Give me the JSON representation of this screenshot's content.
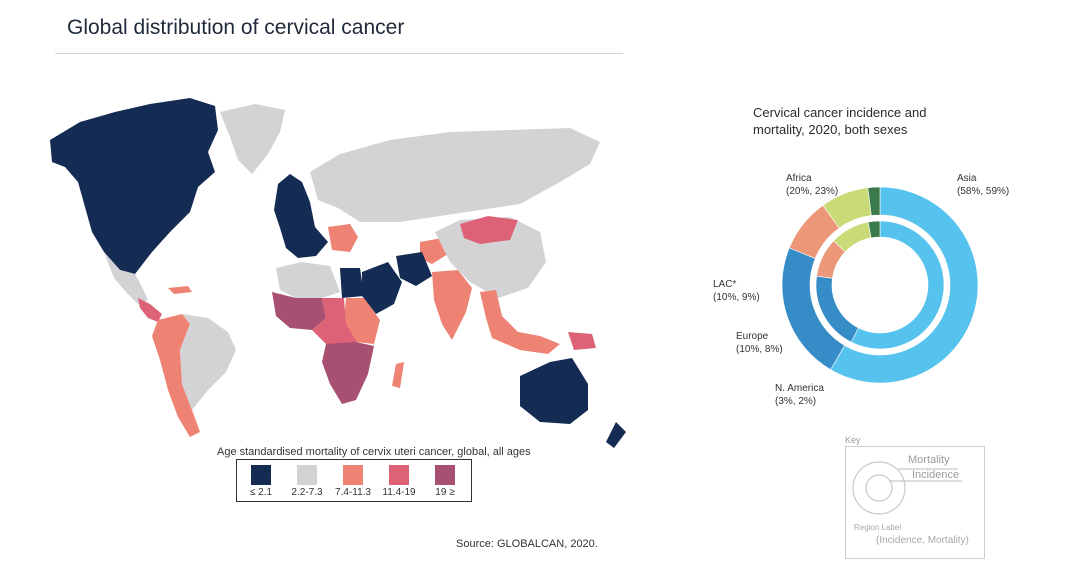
{
  "header": {
    "title": "Global distribution of cervical cancer"
  },
  "legend": {
    "title": "Age standardised mortality of cervix uteri cancer, global, all ages",
    "items": [
      {
        "label": "≤ 2.1",
        "color": "#142b53"
      },
      {
        "label": "2.2-7.3",
        "color": "#d3d3d5"
      },
      {
        "label": "7.4-11.3",
        "color": "#ee8273"
      },
      {
        "label": "11.4-19",
        "color": "#de6277"
      },
      {
        "label": "19 ≥",
        "color": "#a75072"
      }
    ]
  },
  "source": "Source: GLOBALCAN, 2020.",
  "chart_data": [
    {
      "type": "map",
      "title": "Global distribution of cervical cancer",
      "metric": "Age standardised mortality of cervix uteri cancer, global, all ages",
      "bins": [
        "≤ 2.1",
        "2.2-7.3",
        "7.4-11.3",
        "11.4-19",
        "19 ≥"
      ],
      "regions": [
        {
          "name": "North America",
          "bin": "≤ 2.1"
        },
        {
          "name": "Greenland",
          "bin": "2.2-7.3"
        },
        {
          "name": "Mexico",
          "bin": "2.2-7.3"
        },
        {
          "name": "Central America",
          "bin": "11.4-19"
        },
        {
          "name": "Caribbean",
          "bin": "7.4-11.3"
        },
        {
          "name": "South America",
          "bin": "7.4-11.3"
        },
        {
          "name": "Brazil",
          "bin": "2.2-7.3"
        },
        {
          "name": "Western Europe",
          "bin": "≤ 2.1"
        },
        {
          "name": "Eastern Europe",
          "bin": "7.4-11.3"
        },
        {
          "name": "Russia",
          "bin": "2.2-7.3"
        },
        {
          "name": "Mongolia",
          "bin": "11.4-19"
        },
        {
          "name": "China",
          "bin": "2.2-7.3"
        },
        {
          "name": "North Africa",
          "bin": "2.2-7.3"
        },
        {
          "name": "Egypt",
          "bin": "≤ 2.1"
        },
        {
          "name": "Middle East",
          "bin": "≤ 2.1"
        },
        {
          "name": "Iran",
          "bin": "≤ 2.1"
        },
        {
          "name": "Central Asia",
          "bin": "7.4-11.3"
        },
        {
          "name": "India",
          "bin": "7.4-11.3"
        },
        {
          "name": "Southeast Asia",
          "bin": "7.4-11.3"
        },
        {
          "name": "West Africa",
          "bin": "19 ≥"
        },
        {
          "name": "East Africa",
          "bin": "7.4-11.3"
        },
        {
          "name": "Central Africa",
          "bin": "11.4-19"
        },
        {
          "name": "Southern Africa",
          "bin": "19 ≥"
        },
        {
          "name": "Madagascar",
          "bin": "7.4-11.3"
        },
        {
          "name": "Papua New Guinea",
          "bin": "11.4-19"
        },
        {
          "name": "Australia",
          "bin": "≤ 2.1"
        },
        {
          "name": "New Zealand",
          "bin": "≤ 2.1"
        }
      ]
    },
    {
      "type": "pie",
      "title": "Cervical cancer incidence and mortality, 2020, both sexes",
      "title_lines": [
        "Cervical cancer incidence and",
        "mortality, 2020, both sexes"
      ],
      "rings": {
        "outer": "Mortality",
        "inner": "Incidence"
      },
      "series": [
        {
          "name": "Asia",
          "incidence": 58,
          "mortality": 59,
          "color": "#56c3ef",
          "label": "(58%, 59%)"
        },
        {
          "name": "Africa",
          "incidence": 20,
          "mortality": 23,
          "color": "#358cc6",
          "label": "(20%, 23%)"
        },
        {
          "name": "LAC*",
          "incidence": 10,
          "mortality": 9,
          "color": "#ec9878",
          "label": "(10%, 9%)"
        },
        {
          "name": "Europe",
          "incidence": 10,
          "mortality": 8,
          "color": "#c8db76",
          "label": "(10%, 8%)"
        },
        {
          "name": "N. America",
          "incidence": 3,
          "mortality": 2,
          "color": "#3a7a4d",
          "label": "(3%, 2%)"
        }
      ]
    }
  ],
  "key": {
    "caption": "Key",
    "mortality": "Mortality",
    "incidence": "Incidence",
    "region_label": "Region Label",
    "values_label": "(Incidence, Mortality)"
  }
}
